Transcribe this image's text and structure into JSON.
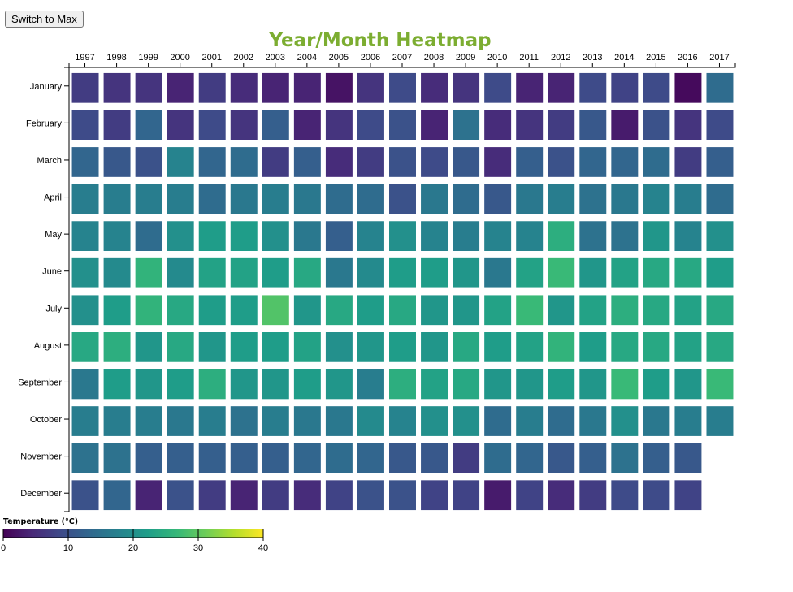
{
  "toolbar": {
    "toggle_label": "Switch to Max"
  },
  "chart_data": {
    "type": "heatmap",
    "title": "Year/Month Heatmap",
    "x": [
      "1997",
      "1998",
      "1999",
      "2000",
      "2001",
      "2002",
      "2003",
      "2004",
      "2005",
      "2006",
      "2007",
      "2008",
      "2009",
      "2010",
      "2011",
      "2012",
      "2013",
      "2014",
      "2015",
      "2016",
      "2017"
    ],
    "y": [
      "January",
      "February",
      "March",
      "April",
      "May",
      "June",
      "July",
      "August",
      "September",
      "October",
      "November",
      "December"
    ],
    "values": [
      [
        7,
        6,
        6,
        4,
        7,
        5,
        4,
        4,
        2,
        6,
        9,
        5,
        6,
        9,
        4,
        4,
        9,
        8,
        9,
        1,
        14
      ],
      [
        9,
        7,
        13,
        6,
        9,
        6,
        12,
        4,
        6,
        9,
        10,
        4,
        15,
        5,
        6,
        7,
        11,
        3,
        10,
        6,
        9
      ],
      [
        13,
        11,
        10,
        18,
        13,
        14,
        7,
        12,
        5,
        7,
        10,
        9,
        11,
        5,
        12,
        10,
        13,
        13,
        14,
        7,
        12
      ],
      [
        17,
        17,
        17,
        17,
        14,
        16,
        17,
        16,
        14,
        14,
        10,
        16,
        14,
        11,
        16,
        17,
        15,
        16,
        18,
        17,
        14
      ],
      [
        18,
        18,
        14,
        20,
        22,
        22,
        20,
        16,
        12,
        18,
        20,
        18,
        17,
        18,
        18,
        25,
        15,
        15,
        21,
        18,
        20
      ],
      [
        20,
        19,
        26,
        19,
        23,
        23,
        22,
        24,
        16,
        19,
        22,
        22,
        21,
        16,
        23,
        27,
        21,
        23,
        24,
        24,
        22
      ],
      [
        20,
        22,
        26,
        24,
        22,
        22,
        29,
        21,
        24,
        22,
        24,
        21,
        21,
        23,
        27,
        21,
        23,
        25,
        24,
        23,
        24
      ],
      [
        24,
        25,
        21,
        24,
        21,
        22,
        22,
        23,
        20,
        21,
        22,
        21,
        24,
        22,
        23,
        26,
        22,
        24,
        24,
        23,
        24
      ],
      [
        16,
        22,
        21,
        22,
        25,
        21,
        21,
        22,
        21,
        17,
        25,
        23,
        24,
        21,
        21,
        22,
        21,
        27,
        22,
        21,
        27
      ],
      [
        17,
        17,
        17,
        16,
        17,
        15,
        17,
        16,
        16,
        19,
        18,
        20,
        20,
        14,
        17,
        14,
        16,
        20,
        16,
        17,
        17
      ],
      [
        15,
        15,
        12,
        12,
        12,
        12,
        12,
        13,
        14,
        13,
        11,
        11,
        7,
        14,
        13,
        11,
        12,
        15,
        12,
        11,
        null
      ],
      [
        10,
        13,
        4,
        10,
        7,
        4,
        7,
        5,
        8,
        10,
        10,
        8,
        8,
        3,
        8,
        5,
        7,
        9,
        9,
        8,
        null
      ]
    ],
    "legend": {
      "title": "Temperature (°C)",
      "min": 0,
      "max": 40,
      "ticks": [
        "0",
        "10",
        "20",
        "30",
        "40"
      ]
    }
  }
}
